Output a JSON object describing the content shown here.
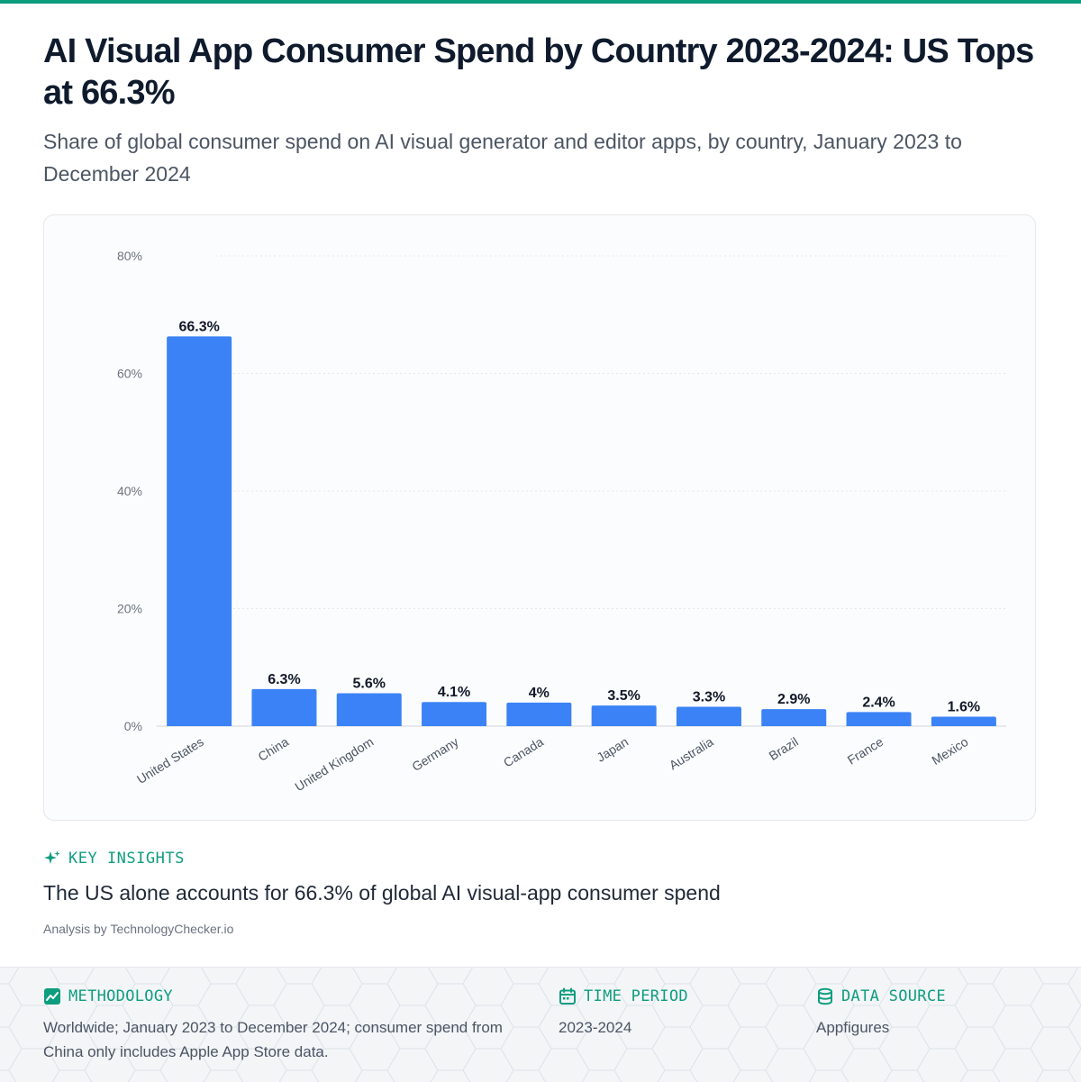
{
  "header": {
    "title": "AI Visual App Consumer Spend by Country 2023-2024: US Tops at 66.3%",
    "subtitle": "Share of global consumer spend on AI visual generator and editor apps, by country, January 2023 to December 2024"
  },
  "chart_data": {
    "type": "bar",
    "categories": [
      "United States",
      "China",
      "United Kingdom",
      "Germany",
      "Canada",
      "Japan",
      "Australia",
      "Brazil",
      "France",
      "Mexico"
    ],
    "values": [
      66.3,
      6.3,
      5.6,
      4.1,
      4,
      3.5,
      3.3,
      2.9,
      2.4,
      1.6
    ],
    "value_labels": [
      "66.3%",
      "6.3%",
      "5.6%",
      "4.1%",
      "4%",
      "3.5%",
      "3.3%",
      "2.9%",
      "2.4%",
      "1.6%"
    ],
    "yticks": [
      "0%",
      "20%",
      "40%",
      "60%",
      "80%"
    ],
    "ylim": [
      0,
      80
    ],
    "bar_color": "#3b82f6",
    "grid": true
  },
  "insights": {
    "title": "KEY INSIGHTS",
    "text": "The US alone accounts for 66.3% of global AI visual-app consumer spend"
  },
  "analysis_credit": "Analysis by TechnologyChecker.io",
  "footer": {
    "methodology": {
      "label": "METHODOLOGY",
      "text": "Worldwide; January 2023 to December 2024; consumer spend from China only includes Apple App Store data.",
      "icon": "chart-line-icon"
    },
    "time_period": {
      "label": "TIME PERIOD",
      "text": "2023-2024",
      "icon": "calendar-icon"
    },
    "data_source": {
      "label": "DATA SOURCE",
      "text": "Appfigures",
      "icon": "database-icon"
    }
  },
  "colors": {
    "accent": "#0f9d7f",
    "bar": "#3b82f6"
  }
}
